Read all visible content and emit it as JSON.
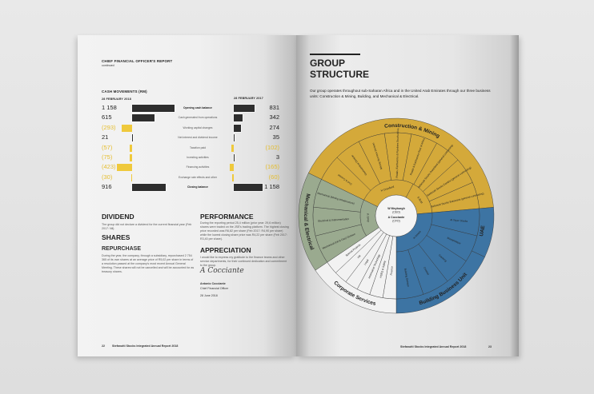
{
  "left_page": {
    "section_header": "CHIEF FINANCIAL OFFICER'S REPORT",
    "section_sub": "continued",
    "cash_title": "CASH MOVEMENTS (RM)",
    "col_2018": "28 FEBRUARY 2018",
    "col_2017": "28 FEBRUARY 2017",
    "rows": [
      {
        "label": "Opening cash balance",
        "v2018": "1 158",
        "n2018": 1158,
        "v2017": "831",
        "n2017": 831,
        "bold": true
      },
      {
        "label": "Cash generated from operations",
        "v2018": "615",
        "n2018": 615,
        "v2017": "342",
        "n2017": 342
      },
      {
        "label": "Working capital changes",
        "v2018": "(293)",
        "n2018": -293,
        "v2017": "274",
        "n2017": 274
      },
      {
        "label": "Net interest and dividend income",
        "v2018": "21",
        "n2018": 21,
        "v2017": "35",
        "n2017": 35
      },
      {
        "label": "Taxation paid",
        "v2018": "(57)",
        "n2018": -57,
        "v2017": "(102)",
        "n2017": -102
      },
      {
        "label": "Investing activities",
        "v2018": "(75)",
        "n2018": -75,
        "v2017": "3",
        "n2017": 3
      },
      {
        "label": "Financing activities",
        "v2018": "(423)",
        "n2018": -423,
        "v2017": "(165)",
        "n2017": -165
      },
      {
        "label": "Exchange rate effects and other",
        "v2018": "(30)",
        "n2018": -30,
        "v2017": "(60)",
        "n2017": -60
      },
      {
        "label": "Closing balance",
        "v2018": "916",
        "n2018": 916,
        "v2017": "1 158",
        "n2017": 1158,
        "bold": true
      }
    ],
    "dividend": {
      "title": "DIVIDEND",
      "text": "The group did not declare a dividend for the current financial year (Feb 2017: Nil)."
    },
    "shares": {
      "title": "SHARES",
      "subtitle": "REPURCHASE",
      "text": "During the year, the company, through a subsidiary, repurchased 2 754 365 of its own shares at an average price of R5,02 per share in terms of a resolution passed at the company's most recent Annual General Meeting. These shares will not be cancelled and will be accounted for as treasury shares."
    },
    "performance": {
      "title": "PERFORMANCE",
      "text": "During the reporting period 25,4 million (prior year: 29,6 million) shares were traded on the JSE's trading platform. The highest closing price recorded was R6,82 per share (Feb 2017: R4,90 per share) while the lowest closing share price was R4,22 per share (Feb 2017: R3,40 per share)."
    },
    "appreciation": {
      "title": "APPRECIATION",
      "text": "I would like to express my gratitude to the finance teams and other service departments, for their continued dedication and commitment to the group."
    },
    "signatory": {
      "signature": "A Cocciante",
      "name": "Antonio Cocciante",
      "role": "Chief Financial Officer",
      "date": "28 June 2018"
    },
    "footer": {
      "page": "22",
      "title": "Stefanutti Stocks Integrated Annual Report 2018"
    }
  },
  "right_page": {
    "title_line1": "GROUP",
    "title_line2": "STRUCTURE",
    "intro": "Our group operates throughout sub-Saharan Africa and in the United Arab Emirates through our three business units: Construction & Mining, Building, and Mechanical & Electrical.",
    "center": {
      "ceo": "W Meyburgh",
      "ceo_role": "(CEO)",
      "cfo": "A Cocciante",
      "cfo_role": "(CFO)"
    },
    "colors": {
      "construction": "#d4a93a",
      "building": "#3d74a3",
      "mechanical": "#9aaa8f",
      "corporate": "#f2f2f2"
    },
    "groups": [
      {
        "band": "Construction & Mining",
        "managers": [
          "H Crawford",
          "S Botz"
        ],
        "units": [
          "Civil & Coastal",
          "Geotechnical Division",
          "Mining Services Division",
          "Roads, Earthworks & Pipelines South Africa",
          "Roads & Earthworks Rest of Africa",
          "Stefanutti Stocks Swaziland (general contracting)",
          "Stefanutti Stocks Zambia (general contracting)",
          "Stefanutti Stocks Botswana (general contracting)"
        ]
      },
      {
        "band": "Building Business Unit",
        "band2": "UAE",
        "managers": [
          "H Amels"
        ],
        "units": [
          "Al Tayer Stocks",
          "Mozambique",
          "Gauteng",
          "Coastal",
          "Building Division"
        ]
      },
      {
        "band": "Corporate Services",
        "managers": [],
        "units": [
          "Finance",
          "HSEQ & Safety",
          "Information Technology",
          "Legal",
          "HR",
          "Special Projects"
        ]
      },
      {
        "band": "Mechanical & Electrical",
        "managers": [
          "K Grey"
        ],
        "units": [
          "Mechanical (Oil & Gas) Division",
          "Electrical & Instrumentation",
          "Mechanical (Mining Infrastructure)"
        ]
      }
    ],
    "footer": {
      "title": "Stefanutti Stocks Integrated Annual Report 2018",
      "page": "23"
    }
  }
}
